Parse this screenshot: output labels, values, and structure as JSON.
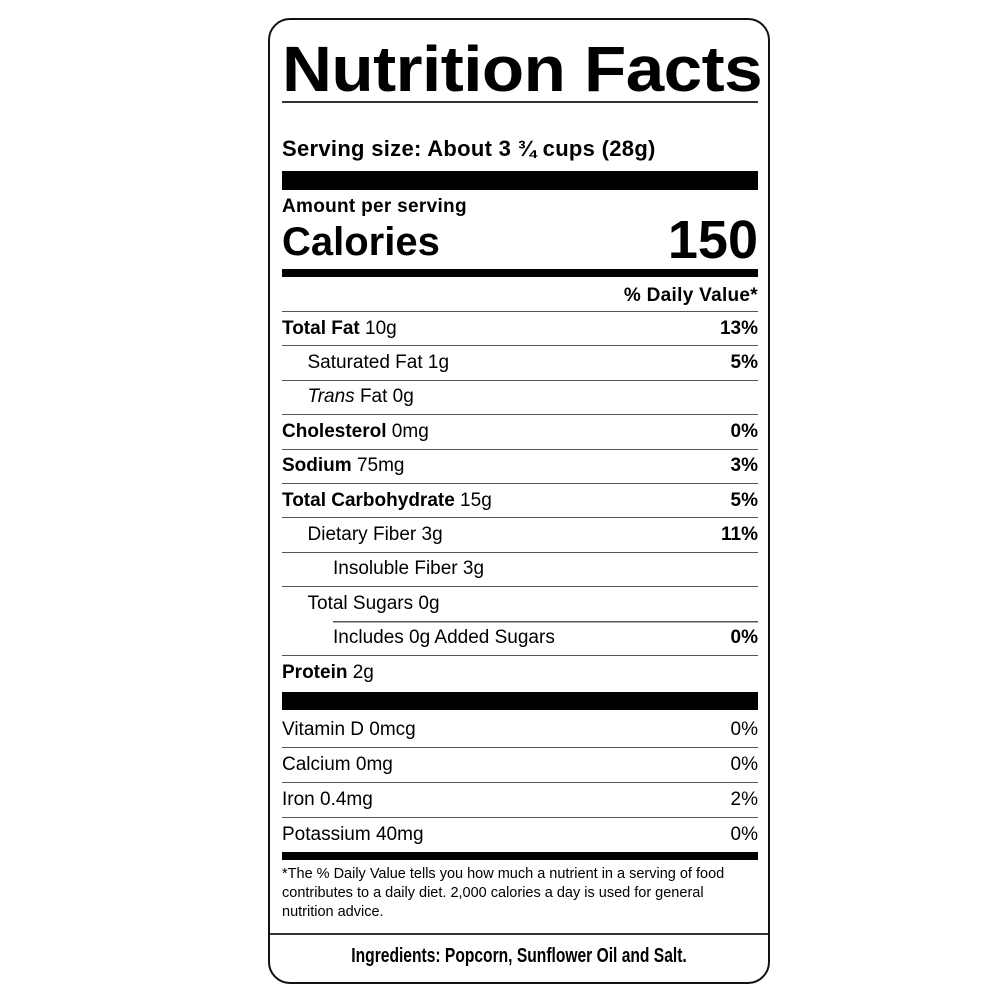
{
  "title": "Nutrition Facts",
  "serving_size": "Serving size: About 3 ¾ cups (28g)",
  "amount_per_serving": "Amount per serving",
  "calories_label": "Calories",
  "calories_value": "150",
  "daily_value_header": "% Daily Value*",
  "nutrients": [
    {
      "bold": "Total Fat",
      "amount": " 10g",
      "pct": "13%",
      "indent": 0
    },
    {
      "bold": "",
      "amount": "Saturated Fat 1g",
      "pct": "5%",
      "indent": 1
    },
    {
      "italic": "Trans",
      "amount": " Fat 0g",
      "pct": "",
      "indent": 1
    },
    {
      "bold": "Cholesterol",
      "amount": " 0mg",
      "pct": "0%",
      "indent": 0
    },
    {
      "bold": "Sodium",
      "amount": " 75mg",
      "pct": "3%",
      "indent": 0
    },
    {
      "bold": "Total Carbohydrate",
      "amount": " 15g",
      "pct": "5%",
      "indent": 0
    },
    {
      "bold": "",
      "amount": "Dietary Fiber 3g",
      "pct": "11%",
      "indent": 1
    },
    {
      "bold": "",
      "amount": "Insoluble Fiber 3g",
      "pct": "",
      "indent": 2
    },
    {
      "bold": "",
      "amount": "Total Sugars 0g",
      "pct": "",
      "indent": 1
    },
    {
      "bold": "",
      "amount": "Includes 0g Added Sugars",
      "pct": "0%",
      "indent": 2
    },
    {
      "bold": "Protein",
      "amount": " 2g",
      "pct": "",
      "indent": 0
    }
  ],
  "vitamins": [
    {
      "name": "Vitamin D 0mcg",
      "pct": "0%"
    },
    {
      "name": "Calcium 0mg",
      "pct": "0%"
    },
    {
      "name": "Iron 0.4mg",
      "pct": "2%"
    },
    {
      "name": "Potassium 40mg",
      "pct": "0%"
    }
  ],
  "footnote": "*The % Daily Value tells you how much a nutrient in a serving of food contributes to a daily diet. 2,000 calories a day is used for general nutrition advice.",
  "ingredients": "Ingredients: Popcorn, Sunflower Oil and Salt."
}
